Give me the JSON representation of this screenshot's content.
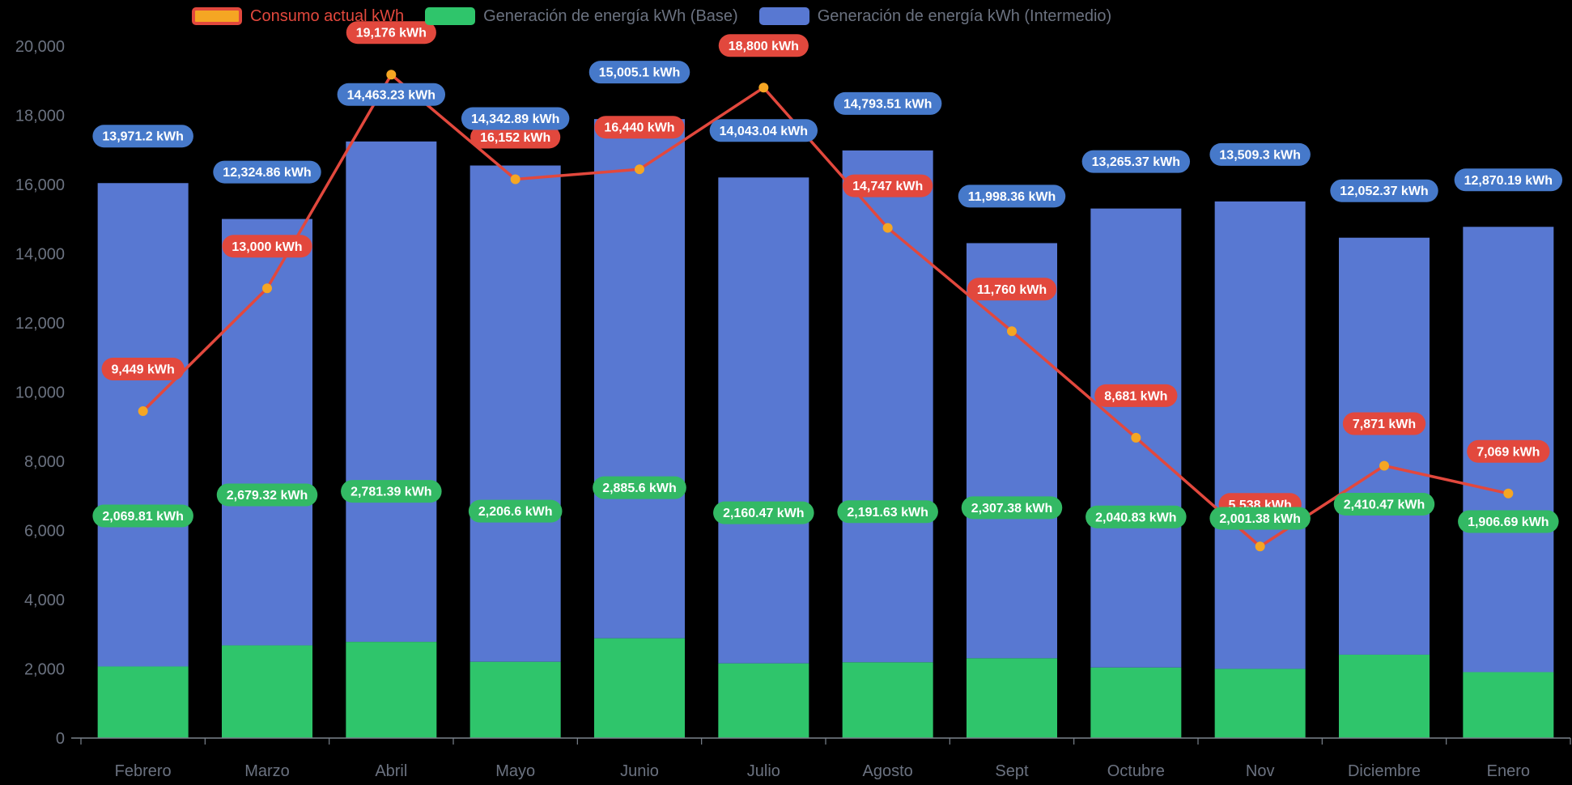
{
  "legend": {
    "items": [
      {
        "label": "Consumo actual kWh"
      },
      {
        "label": "Generación de energía kWh (Base)"
      },
      {
        "label": "Generación de energía kWh (Intermedio)"
      }
    ]
  },
  "colors": {
    "background": "#000000",
    "axis_text": "#6B7280",
    "axis_line": "#7A828C",
    "consumo_line": "#E2483D",
    "consumo_point": "#F5A623",
    "base_bar": "#2FC56B",
    "base_label_bg": "#33B964",
    "intermedio_bar": "#5878D2",
    "intermedio_label_bg": "#4679CA",
    "label_text": "#FFFFFF"
  },
  "chart_data": {
    "type": "bar",
    "subtype": "stacked-bars-with-line-overlay",
    "title": "",
    "xlabel": "",
    "ylabel": "",
    "grid": false,
    "legend_position": "top",
    "ylim": [
      0,
      20000
    ],
    "ytick_step": 2000,
    "ytick_labels": [
      "0",
      "2,000",
      "4,000",
      "6,000",
      "8,000",
      "10,000",
      "12,000",
      "14,000",
      "16,000",
      "18,000",
      "20,000"
    ],
    "categories": [
      "Febrero",
      "Marzo",
      "Abril",
      "Mayo",
      "Junio",
      "Julio",
      "Agosto",
      "Sept",
      "Octubre",
      "Nov",
      "Diciembre",
      "Enero"
    ],
    "series": [
      {
        "name": "Consumo actual kWh",
        "type": "line",
        "color": "#E2483D",
        "point_color": "#F5A623",
        "values": [
          9449,
          13000,
          19176,
          16152,
          16440,
          18800,
          14747,
          11760,
          8681,
          5538,
          7871,
          7069
        ],
        "labels": [
          "9,449 kWh",
          "13,000 kWh",
          "19,176 kWh",
          "16,152 kWh",
          "16,440 kWh",
          "18,800 kWh",
          "14,747 kWh",
          "11,760 kWh",
          "8,681 kWh",
          "5,538 kWh",
          "7,871 kWh",
          "7,069 kWh"
        ]
      },
      {
        "name": "Generación de energía kWh (Base)",
        "type": "bar",
        "stack": "generacion",
        "color": "#2FC56B",
        "label_bg": "#33B964",
        "values": [
          2069.81,
          2679.32,
          2781.39,
          2206.6,
          2885.6,
          2160.47,
          2191.63,
          2307.38,
          2040.83,
          2001.38,
          2410.47,
          1906.69
        ],
        "labels": [
          "2,069.81 kWh",
          "2,679.32 kWh",
          "2,781.39 kWh",
          "2,206.6 kWh",
          "2,885.6 kWh",
          "2,160.47 kWh",
          "2,191.63 kWh",
          "2,307.38 kWh",
          "2,040.83 kWh",
          "2,001.38 kWh",
          "2,410.47 kWh",
          "1,906.69 kWh"
        ]
      },
      {
        "name": "Generación de energía kWh (Intermedio)",
        "type": "bar",
        "stack": "generacion",
        "color": "#5878D2",
        "label_bg": "#4679CA",
        "values": [
          13971.2,
          12324.86,
          14463.23,
          14342.89,
          15005.1,
          14043.04,
          14793.51,
          11998.36,
          13265.37,
          13509.3,
          12052.37,
          12870.19
        ],
        "labels": [
          "13,971.2 kWh",
          "12,324.86 kWh",
          "14,463.23 kWh",
          "14,342.89 kWh",
          "15,005.1 kWh",
          "14,043.04 kWh",
          "14,793.51 kWh",
          "11,998.36 kWh",
          "13,265.37 kWh",
          "13,509.3 kWh",
          "12,052.37 kWh",
          "12,870.19 kWh"
        ]
      }
    ]
  }
}
